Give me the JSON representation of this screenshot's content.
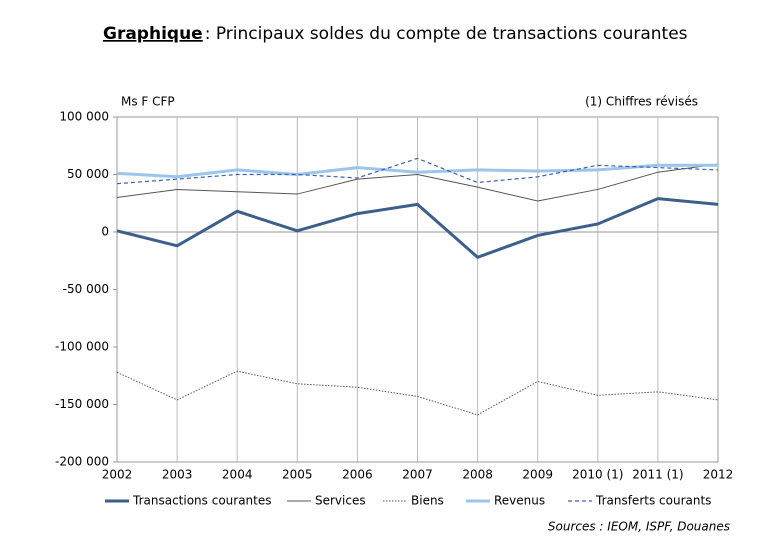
{
  "chart_data": {
    "type": "line",
    "title_prefix": "Graphique",
    "title": ": Principaux soldes du compte de transactions courantes",
    "y_label": "Ms F CFP",
    "annotation": "(1) Chiffres révisés",
    "source": "Sources : IEOM, ISPF, Douanes",
    "categories": [
      "2002",
      "2003",
      "2004",
      "2005",
      "2006",
      "2007",
      "2008",
      "2009",
      "2010 (1)",
      "2011 (1)",
      "2012"
    ],
    "ylim": [
      -200000,
      100000
    ],
    "yticks": [
      {
        "value": -200000,
        "label": "-200 000"
      },
      {
        "value": -150000,
        "label": "-150 000"
      },
      {
        "value": -100000,
        "label": "-100 000"
      },
      {
        "value": -50000,
        "label": "-50 000"
      },
      0,
      {
        "value": 50000,
        "label": "50 000"
      },
      {
        "value": 100000,
        "label": "100 000"
      }
    ],
    "grid": "x",
    "series": [
      {
        "name": "Transactions courantes",
        "color": "#3d5f8b",
        "style": "solid",
        "width": 3,
        "values": [
          1000,
          -12000,
          18000,
          1000,
          16000,
          24000,
          -22000,
          -3000,
          7000,
          29000,
          24000
        ]
      },
      {
        "name": "Services",
        "color": "#555555",
        "style": "solid",
        "width": 1,
        "values": [
          30000,
          37000,
          35000,
          33000,
          46000,
          50000,
          39000,
          27000,
          37000,
          52000,
          59000
        ]
      },
      {
        "name": "Biens",
        "color": "#555555",
        "style": "dotted",
        "width": 1,
        "values": [
          -122000,
          -146000,
          -121000,
          -132000,
          -135000,
          -143000,
          -159000,
          -130000,
          -142000,
          -139000,
          -146000
        ]
      },
      {
        "name": "Revenus",
        "color": "#9cc5eb",
        "style": "solid",
        "width": 3,
        "values": [
          51000,
          48000,
          54000,
          50000,
          56000,
          52000,
          54000,
          53000,
          54000,
          58000,
          58000
        ]
      },
      {
        "name": "Transferts courants",
        "color": "#3a62b3",
        "style": "dashed",
        "width": 1.2,
        "values": [
          42000,
          46000,
          50000,
          50000,
          47000,
          64000,
          43000,
          48000,
          58000,
          56000,
          54000
        ]
      }
    ]
  }
}
